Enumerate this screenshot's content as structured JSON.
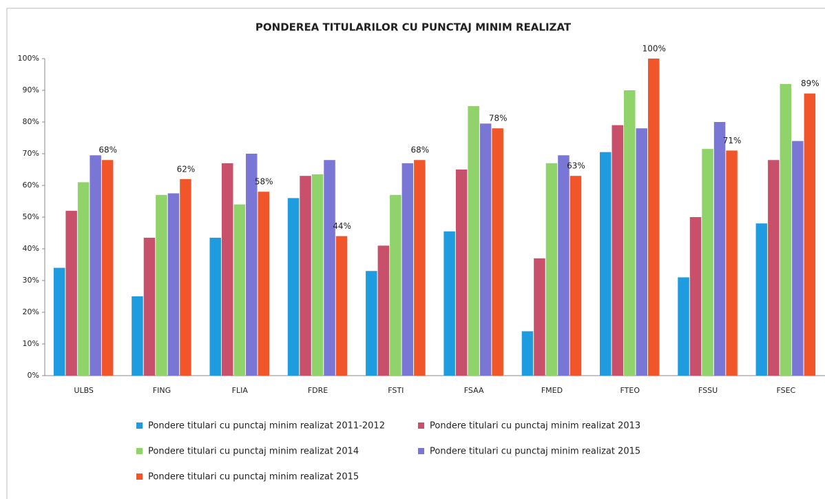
{
  "chart_data": {
    "type": "bar",
    "title": "PONDEREA TITULARILOR CU PUNCTAJ MINIM REALIZAT",
    "categories": [
      "ULBS",
      "FING",
      "FLIA",
      "FDRE",
      "FSTI",
      "FSAA",
      "FMED",
      "FTEO",
      "FSSU",
      "FSEC"
    ],
    "series": [
      {
        "name": "Pondere titulari cu punctaj minim realizat 2011-2012",
        "color": "#1f9be0",
        "values": [
          34,
          25,
          43.5,
          56,
          33,
          45.5,
          14,
          70.5,
          31,
          48
        ]
      },
      {
        "name": "Pondere titulari cu punctaj minim realizat 2013",
        "color": "#c9506b",
        "values": [
          52,
          43.5,
          67,
          63,
          41,
          65,
          37,
          79,
          50,
          68
        ]
      },
      {
        "name": "Pondere titulari cu punctaj minim realizat 2014",
        "color": "#8fd36a",
        "values": [
          61,
          57,
          54,
          63.5,
          57,
          85,
          67,
          90,
          71.5,
          92
        ]
      },
      {
        "name": "Pondere titulari cu punctaj minim realizat 2015",
        "color": "#7a76d6",
        "values": [
          69.5,
          57.5,
          70,
          68,
          67,
          79.5,
          69.5,
          78,
          80,
          74
        ]
      },
      {
        "name": "Pondere titulari cu punctaj minim realizat 2015",
        "color": "#f0562a",
        "values": [
          68,
          62,
          58,
          44,
          68,
          78,
          63,
          100,
          71,
          89
        ],
        "value_labels": [
          "68%",
          "62%",
          "58%",
          "44%",
          "68%",
          "78%",
          "63%",
          "100%",
          "71%",
          "89%"
        ]
      }
    ],
    "ylim": [
      0,
      100
    ],
    "yticks": [
      {
        "value": 0,
        "label": "0%"
      },
      {
        "value": 10,
        "label": "10%"
      },
      {
        "value": 20,
        "label": "20%"
      },
      {
        "value": 30,
        "label": "30%"
      },
      {
        "value": 40,
        "label": "40%"
      },
      {
        "value": 50,
        "label": "50%"
      },
      {
        "value": 60,
        "label": "60%"
      },
      {
        "value": 70,
        "label": "70%"
      },
      {
        "value": 80,
        "label": "80%"
      },
      {
        "value": 90,
        "label": "90%"
      },
      {
        "value": 100,
        "label": "100%"
      }
    ],
    "legend": "bottom"
  }
}
